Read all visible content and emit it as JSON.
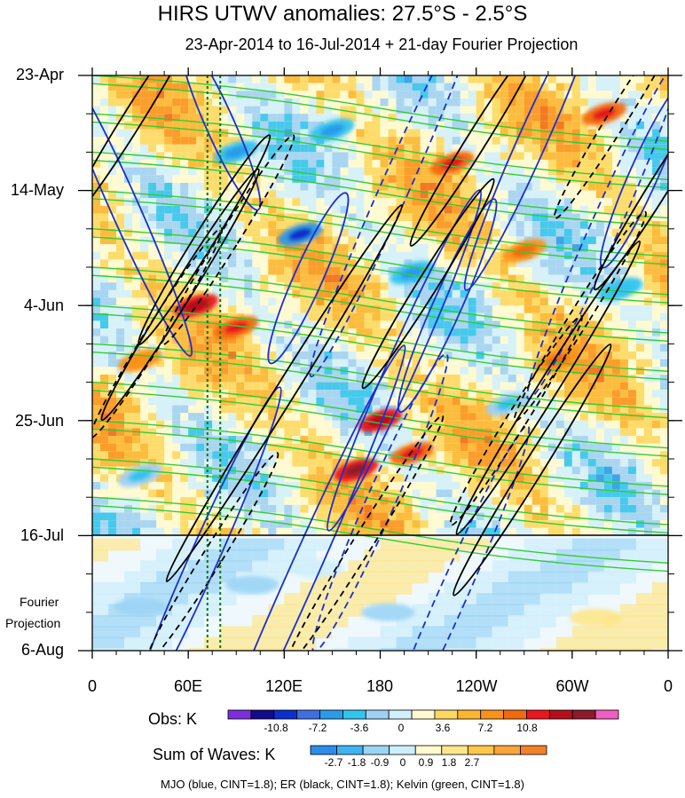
{
  "chart_data": {
    "type": "heatmap",
    "title": "HIRS UTWV anomalies: 27.5°S - 2.5°S",
    "subtitle": "23-Apr-2014 to 16-Jul-2014 + 21-day Fourier Projection",
    "y_ticks": [
      "23-Apr",
      "14-May",
      "4-Jun",
      "25-Jun",
      "16-Jul",
      "6-Aug"
    ],
    "x_ticks": [
      "0",
      "60E",
      "120E",
      "180",
      "120W",
      "60W",
      "0"
    ],
    "xlim": [
      0,
      360
    ],
    "projection_label": [
      "Fourier",
      "Projection"
    ],
    "obs_colorbar": {
      "title": "Obs: K",
      "labels": [
        "-10.8",
        "-7.2",
        "-3.6",
        "0",
        "3.6",
        "7.2",
        "10.8"
      ],
      "colors": [
        "#7b2fd9",
        "#140a8c",
        "#0a2fcc",
        "#3f6fe0",
        "#2a9be8",
        "#32c3f0",
        "#9fd0f5",
        "#d2f0fc",
        "#fffad2",
        "#fdd860",
        "#fcb52e",
        "#f99218",
        "#f26a0e",
        "#e8161e",
        "#b40f1a",
        "#8c1a2a",
        "#ee5fbf"
      ]
    },
    "sum_colorbar": {
      "title": "Sum of Waves: K",
      "labels": [
        "-2.7",
        "-1.8",
        "-0.9",
        "0",
        "0.9",
        "1.8",
        "2.7"
      ],
      "colors": [
        "#2c8ee8",
        "#40b4f0",
        "#9bd4f5",
        "#cdeefb",
        "#fffacf",
        "#fde78a",
        "#fcc84a",
        "#f9a53a",
        "#f0822c"
      ]
    },
    "reference_lines_longitude": [
      72,
      80
    ],
    "features": [
      {
        "name": "Positive anomaly",
        "lon": 65,
        "day": 42,
        "value": 9.0
      },
      {
        "name": "Positive anomaly",
        "lon": 90,
        "day": 46,
        "value": 7.5
      },
      {
        "name": "Positive anomaly",
        "lon": 180,
        "day": 63,
        "value": 8.5
      },
      {
        "name": "Positive anomaly",
        "lon": 165,
        "day": 72,
        "value": 9.5
      },
      {
        "name": "Positive anomaly",
        "lon": 200,
        "day": 69,
        "value": 6.5
      },
      {
        "name": "Positive anomaly",
        "lon": 225,
        "day": 16,
        "value": 7.0
      },
      {
        "name": "Positive anomaly",
        "lon": 270,
        "day": 32,
        "value": 6.0
      },
      {
        "name": "Positive anomaly",
        "lon": 320,
        "day": 7,
        "value": 6.5
      },
      {
        "name": "Positive anomaly",
        "lon": 290,
        "day": 52,
        "value": 5.5
      },
      {
        "name": "Positive anomaly",
        "lon": 30,
        "day": 52,
        "value": 5.0
      },
      {
        "name": "Negative anomaly",
        "lon": 130,
        "day": 29,
        "value": -8.0
      },
      {
        "name": "Negative anomaly",
        "lon": 90,
        "day": 14,
        "value": -6.0
      },
      {
        "name": "Negative anomaly",
        "lon": 200,
        "day": 36,
        "value": -6.0
      },
      {
        "name": "Negative anomaly",
        "lon": 330,
        "day": 39,
        "value": -5.0
      },
      {
        "name": "Negative anomaly",
        "lon": 30,
        "day": 73,
        "value": -4.5
      },
      {
        "name": "Negative anomaly",
        "lon": 260,
        "day": 60,
        "value": -4.5
      },
      {
        "name": "Negative anomaly",
        "lon": 150,
        "day": 10,
        "value": -5.5
      }
    ],
    "forecast_features": [
      {
        "name": "Projected negative",
        "lon": 30,
        "day": 97,
        "value": -1.8
      },
      {
        "name": "Projected negative",
        "lon": 100,
        "day": 93,
        "value": -1.5
      },
      {
        "name": "Projected negative",
        "lon": 140,
        "day": 90,
        "value": -1.2
      },
      {
        "name": "Projected negative",
        "lon": 185,
        "day": 98,
        "value": -1.5
      },
      {
        "name": "Projected positive",
        "lon": 315,
        "day": 99,
        "value": 0.9
      }
    ],
    "mjo_contours": [
      {
        "lon": 20,
        "day": 24,
        "len": 35,
        "dir": 1,
        "sign": 1
      },
      {
        "lon": 80,
        "day": 9,
        "len": 20,
        "dir": 1,
        "sign": 1
      },
      {
        "lon": 135,
        "day": 37,
        "len": 20,
        "dir": -1,
        "sign": 1
      },
      {
        "lon": 195,
        "day": 52,
        "len": 40,
        "dir": -1,
        "sign": 1
      },
      {
        "lon": 275,
        "day": 12,
        "len": 35,
        "dir": -1,
        "sign": 1
      },
      {
        "lon": 345,
        "day": 18,
        "len": 22,
        "dir": -1,
        "sign": 1
      },
      {
        "lon": 222,
        "day": 42,
        "len": 25,
        "dir": -1,
        "sign": 1
      },
      {
        "lon": 70,
        "day": 88,
        "len": 40,
        "dir": -1,
        "sign": 1
      },
      {
        "lon": 130,
        "day": 92,
        "len": 55,
        "dir": -1,
        "sign": 1
      },
      {
        "lon": 190,
        "day": 20,
        "len": 45,
        "dir": -1,
        "sign": -1
      },
      {
        "lon": 180,
        "day": 78,
        "len": 35,
        "dir": -1,
        "sign": -1
      },
      {
        "lon": 225,
        "day": 95,
        "len": 40,
        "dir": -1,
        "sign": -1
      },
      {
        "lon": 320,
        "day": 28,
        "len": 40,
        "dir": -1,
        "sign": -1
      }
    ],
    "er_contours": [
      {
        "lon": 25,
        "day": 8,
        "len": 25,
        "dir": 1,
        "sign": 1
      },
      {
        "lon": 70,
        "day": 30,
        "len": 25,
        "dir": 1,
        "sign": 1
      },
      {
        "lon": 55,
        "day": 40,
        "len": 30,
        "dir": 1,
        "sign": 1
      },
      {
        "lon": 120,
        "day": 58,
        "len": 45,
        "dir": 1,
        "sign": 1
      },
      {
        "lon": 210,
        "day": 38,
        "len": 25,
        "dir": 1,
        "sign": 1
      },
      {
        "lon": 275,
        "day": 72,
        "len": 30,
        "dir": 1,
        "sign": 1
      },
      {
        "lon": 285,
        "day": 57,
        "len": 35,
        "dir": 1,
        "sign": 1
      },
      {
        "lon": 355,
        "day": 20,
        "len": 25,
        "dir": 1,
        "sign": 1
      },
      {
        "lon": 240,
        "day": 12,
        "len": 25,
        "dir": 1,
        "sign": 1
      },
      {
        "lon": 40,
        "day": 47,
        "len": 25,
        "dir": 1,
        "sign": -1
      },
      {
        "lon": 85,
        "day": 30,
        "len": 25,
        "dir": 1,
        "sign": -1
      },
      {
        "lon": 75,
        "day": 88,
        "len": 25,
        "dir": 1,
        "sign": -1
      },
      {
        "lon": 305,
        "day": 44,
        "len": 25,
        "dir": 1,
        "sign": -1
      },
      {
        "lon": 330,
        "day": 7,
        "len": 25,
        "dir": 1,
        "sign": -1
      },
      {
        "lon": 265,
        "day": 63,
        "len": 25,
        "dir": 1,
        "sign": -1
      },
      {
        "lon": 170,
        "day": 85,
        "len": 30,
        "dir": 1,
        "sign": -1
      }
    ],
    "kelvin_start_days": [
      0,
      7,
      14,
      21,
      28,
      35,
      42,
      49,
      56,
      63,
      70,
      77
    ],
    "footer": "MJO (blue, CINT=1.8); ER (black, CINT=1.8); Kelvin (green, CINT=1.8)"
  }
}
